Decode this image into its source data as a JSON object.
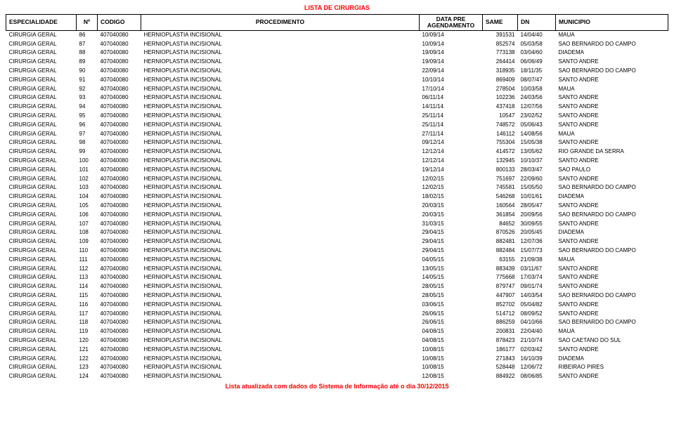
{
  "report_title": "LISTA DE CIRURGIAS",
  "footer_note": "Lista atualizada com dados do Sistema de Informação até o dia 30/12/2015",
  "columns": {
    "especialidade": "ESPECIALIDADE",
    "no": "Nº",
    "codigo": "CODIGO",
    "procedimento": "PROCEDIMENTO",
    "data_pre": "DATA PRE AGENDAMENTO",
    "same": "SAME",
    "dn": "DN",
    "municipio": "MUNICIPIO"
  },
  "rows": [
    {
      "esp": "CIRURGIA GERAL",
      "no": "86",
      "cod": "407040080",
      "proc": "HERNIOPLASTIA INCISIONAL",
      "data": "10/09/14",
      "same": "391531",
      "dn": "14/04/40",
      "mun": "MAUA"
    },
    {
      "esp": "CIRURGIA GERAL",
      "no": "87",
      "cod": "407040080",
      "proc": "HERNIOPLASTIA INCISIONAL",
      "data": "10/09/14",
      "same": "852574",
      "dn": "05/03/58",
      "mun": "SAO BERNARDO DO CAMPO"
    },
    {
      "esp": "CIRURGIA GERAL",
      "no": "88",
      "cod": "407040080",
      "proc": "HERNIOPLASTIA INCISIONAL",
      "data": "19/09/14",
      "same": "773138",
      "dn": "03/04/60",
      "mun": "DIADEMA"
    },
    {
      "esp": "CIRURGIA GERAL",
      "no": "89",
      "cod": "407040080",
      "proc": "HERNIOPLASTIA INCISIONAL",
      "data": "19/09/14",
      "same": "264414",
      "dn": "06/06/49",
      "mun": "SANTO ANDRE"
    },
    {
      "esp": "CIRURGIA GERAL",
      "no": "90",
      "cod": "407040080",
      "proc": "HERNIOPLASTIA INCISIONAL",
      "data": "22/09/14",
      "same": "318935",
      "dn": "18/11/35",
      "mun": "SAO BERNARDO DO CAMPO"
    },
    {
      "esp": "CIRURGIA GERAL",
      "no": "91",
      "cod": "407040080",
      "proc": "HERNIOPLASTIA INCISIONAL",
      "data": "10/10/14",
      "same": "869409",
      "dn": "08/07/47",
      "mun": "SANTO ANDRE"
    },
    {
      "esp": "CIRURGIA GERAL",
      "no": "92",
      "cod": "407040080",
      "proc": "HERNIOPLASTIA INCISIONAL",
      "data": "17/10/14",
      "same": "278504",
      "dn": "10/03/58",
      "mun": "MAUA"
    },
    {
      "esp": "CIRURGIA GERAL",
      "no": "93",
      "cod": "407040080",
      "proc": "HERNIOPLASTIA INCISIONAL",
      "data": "06/11/14",
      "same": "102236",
      "dn": "24/03/56",
      "mun": "SANTO ANDRE"
    },
    {
      "esp": "CIRURGIA GERAL",
      "no": "94",
      "cod": "407040080",
      "proc": "HERNIOPLASTIA INCISIONAL",
      "data": "14/11/14",
      "same": "437418",
      "dn": "12/07/56",
      "mun": "SANTO ANDRE"
    },
    {
      "esp": "CIRURGIA GERAL",
      "no": "95",
      "cod": "407040080",
      "proc": "HERNIOPLASTIA INCISIONAL",
      "data": "25/11/14",
      "same": "10547",
      "dn": "23/02/52",
      "mun": "SANTO ANDRE"
    },
    {
      "esp": "CIRURGIA GERAL",
      "no": "96",
      "cod": "407040080",
      "proc": "HERNIOPLASTIA INCISIONAL",
      "data": "25/11/14",
      "same": "748572",
      "dn": "05/06/43",
      "mun": "SANTO ANDRE"
    },
    {
      "esp": "CIRURGIA GERAL",
      "no": "97",
      "cod": "407040080",
      "proc": "HERNIOPLASTIA INCISIONAL",
      "data": "27/11/14",
      "same": "146112",
      "dn": "14/08/56",
      "mun": "MAUA"
    },
    {
      "esp": "CIRURGIA GERAL",
      "no": "98",
      "cod": "407040080",
      "proc": "HERNIOPLASTIA INCISIONAL",
      "data": "09/12/14",
      "same": "755304",
      "dn": "15/05/38",
      "mun": "SANTO ANDRE"
    },
    {
      "esp": "CIRURGIA GERAL",
      "no": "99",
      "cod": "407040080",
      "proc": "HERNIOPLASTIA INCISIONAL",
      "data": "12/12/14",
      "same": "414572",
      "dn": "13/05/62",
      "mun": "RIO GRANDE DA SERRA"
    },
    {
      "esp": "CIRURGIA GERAL",
      "no": "100",
      "cod": "407040080",
      "proc": "HERNIOPLASTIA INCISIONAL",
      "data": "12/12/14",
      "same": "132945",
      "dn": "10/10/37",
      "mun": "SANTO ANDRE"
    },
    {
      "esp": "CIRURGIA GERAL",
      "no": "101",
      "cod": "407040080",
      "proc": "HERNIOPLASTIA INCISIONAL",
      "data": "19/12/14",
      "same": "800133",
      "dn": "28/03/47",
      "mun": "SAO PAULO"
    },
    {
      "esp": "CIRURGIA GERAL",
      "no": "102",
      "cod": "407040080",
      "proc": "HERNIOPLASTIA INCISIONAL",
      "data": "12/02/15",
      "same": "751697",
      "dn": "22/09/60",
      "mun": "SANTO ANDRE"
    },
    {
      "esp": "CIRURGIA GERAL",
      "no": "103",
      "cod": "407040080",
      "proc": "HERNIOPLASTIA INCISIONAL",
      "data": "12/02/15",
      "same": "745581",
      "dn": "15/05/50",
      "mun": "SAO BERNARDO DO CAMPO"
    },
    {
      "esp": "CIRURGIA GERAL",
      "no": "104",
      "cod": "407040080",
      "proc": "HERNIOPLASTIA INCISIONAL",
      "data": "18/02/15",
      "same": "546268",
      "dn": "10/01/61",
      "mun": "DIADEMA"
    },
    {
      "esp": "CIRURGIA GERAL",
      "no": "105",
      "cod": "407040080",
      "proc": "HERNIOPLASTIA INCISIONAL",
      "data": "20/03/15",
      "same": "160564",
      "dn": "28/05/47",
      "mun": "SANTO ANDRE"
    },
    {
      "esp": "CIRURGIA GERAL",
      "no": "106",
      "cod": "407040080",
      "proc": "HERNIOPLASTIA INCISIONAL",
      "data": "20/03/15",
      "same": "361854",
      "dn": "20/09/56",
      "mun": "SAO BERNARDO DO CAMPO"
    },
    {
      "esp": "CIRURGIA GERAL",
      "no": "107",
      "cod": "407040080",
      "proc": "HERNIOPLASTIA INCISIONAL",
      "data": "31/03/15",
      "same": "84652",
      "dn": "30/09/55",
      "mun": "SANTO ANDRE"
    },
    {
      "esp": "CIRURGIA GERAL",
      "no": "108",
      "cod": "407040080",
      "proc": "HERNIOPLASTIA INCISIONAL",
      "data": "29/04/15",
      "same": "870526",
      "dn": "20/05/45",
      "mun": "DIADEMA"
    },
    {
      "esp": "CIRURGIA GERAL",
      "no": "109",
      "cod": "407040080",
      "proc": "HERNIOPLASTIA INCISIONAL",
      "data": "29/04/15",
      "same": "882481",
      "dn": "12/07/36",
      "mun": "SANTO ANDRE"
    },
    {
      "esp": "CIRURGIA GERAL",
      "no": "110",
      "cod": "407040080",
      "proc": "HERNIOPLASTIA INCISIONAL",
      "data": "29/04/15",
      "same": "882484",
      "dn": "15/07/73",
      "mun": "SAO BERNARDO DO CAMPO"
    },
    {
      "esp": "CIRURGIA GERAL",
      "no": "111",
      "cod": "407040080",
      "proc": "HERNIOPLASTIA INCISIONAL",
      "data": "04/05/15",
      "same": "63155",
      "dn": "21/09/38",
      "mun": "MAUA"
    },
    {
      "esp": "CIRURGIA GERAL",
      "no": "112",
      "cod": "407040080",
      "proc": "HERNIOPLASTIA INCISIONAL",
      "data": "13/05/15",
      "same": "883439",
      "dn": "03/11/67",
      "mun": "SANTO ANDRE"
    },
    {
      "esp": "CIRURGIA GERAL",
      "no": "113",
      "cod": "407040080",
      "proc": "HERNIOPLASTIA INCISIONAL",
      "data": "14/05/15",
      "same": "775668",
      "dn": "17/03/74",
      "mun": "SANTO ANDRE"
    },
    {
      "esp": "CIRURGIA GERAL",
      "no": "114",
      "cod": "407040080",
      "proc": "HERNIOPLASTIA INCISIONAL",
      "data": "28/05/15",
      "same": "879747",
      "dn": "09/01/74",
      "mun": "SANTO ANDRE"
    },
    {
      "esp": "CIRURGIA GERAL",
      "no": "115",
      "cod": "407040080",
      "proc": "HERNIOPLASTIA INCISIONAL",
      "data": "28/05/15",
      "same": "447907",
      "dn": "14/03/54",
      "mun": "SAO BERNARDO DO CAMPO"
    },
    {
      "esp": "CIRURGIA GERAL",
      "no": "116",
      "cod": "407040080",
      "proc": "HERNIOPLASTIA INCISIONAL",
      "data": "03/06/15",
      "same": "852702",
      "dn": "05/04/82",
      "mun": "SANTO ANDRE"
    },
    {
      "esp": "CIRURGIA GERAL",
      "no": "117",
      "cod": "407040080",
      "proc": "HERNIOPLASTIA INCISIONAL",
      "data": "26/06/15",
      "same": "514712",
      "dn": "08/09/52",
      "mun": "SANTO ANDRE"
    },
    {
      "esp": "CIRURGIA GERAL",
      "no": "118",
      "cod": "407040080",
      "proc": "HERNIOPLASTIA INCISIONAL",
      "data": "26/06/15",
      "same": "886259",
      "dn": "04/10/66",
      "mun": "SAO BERNARDO DO CAMPO"
    },
    {
      "esp": "CIRURGIA GERAL",
      "no": "119",
      "cod": "407040080",
      "proc": "HERNIOPLASTIA INCISIONAL",
      "data": "04/08/15",
      "same": "200831",
      "dn": "22/04/40",
      "mun": "MAUA"
    },
    {
      "esp": "CIRURGIA GERAL",
      "no": "120",
      "cod": "407040080",
      "proc": "HERNIOPLASTIA INCISIONAL",
      "data": "04/08/15",
      "same": "878423",
      "dn": "21/10/74",
      "mun": "SAO CAETANO DO SUL"
    },
    {
      "esp": "CIRURGIA GERAL",
      "no": "121",
      "cod": "407040080",
      "proc": "HERNIOPLASTIA INCISIONAL",
      "data": "10/08/15",
      "same": "186177",
      "dn": "02/03/42",
      "mun": "SANTO ANDRE"
    },
    {
      "esp": "CIRURGIA GERAL",
      "no": "122",
      "cod": "407040080",
      "proc": "HERNIOPLASTIA INCISIONAL",
      "data": "10/08/15",
      "same": "271843",
      "dn": "16/10/39",
      "mun": "DIADEMA"
    },
    {
      "esp": "CIRURGIA GERAL",
      "no": "123",
      "cod": "407040080",
      "proc": "HERNIOPLASTIA INCISIONAL",
      "data": "10/08/15",
      "same": "528448",
      "dn": "12/06/72",
      "mun": "RIBEIRAO PIRES"
    },
    {
      "esp": "CIRURGIA GERAL",
      "no": "124",
      "cod": "407040080",
      "proc": "HERNIOPLASTIA INCISIONAL",
      "data": "12/08/15",
      "same": "884922",
      "dn": "08/06/85",
      "mun": "SANTO ANDRE"
    }
  ]
}
